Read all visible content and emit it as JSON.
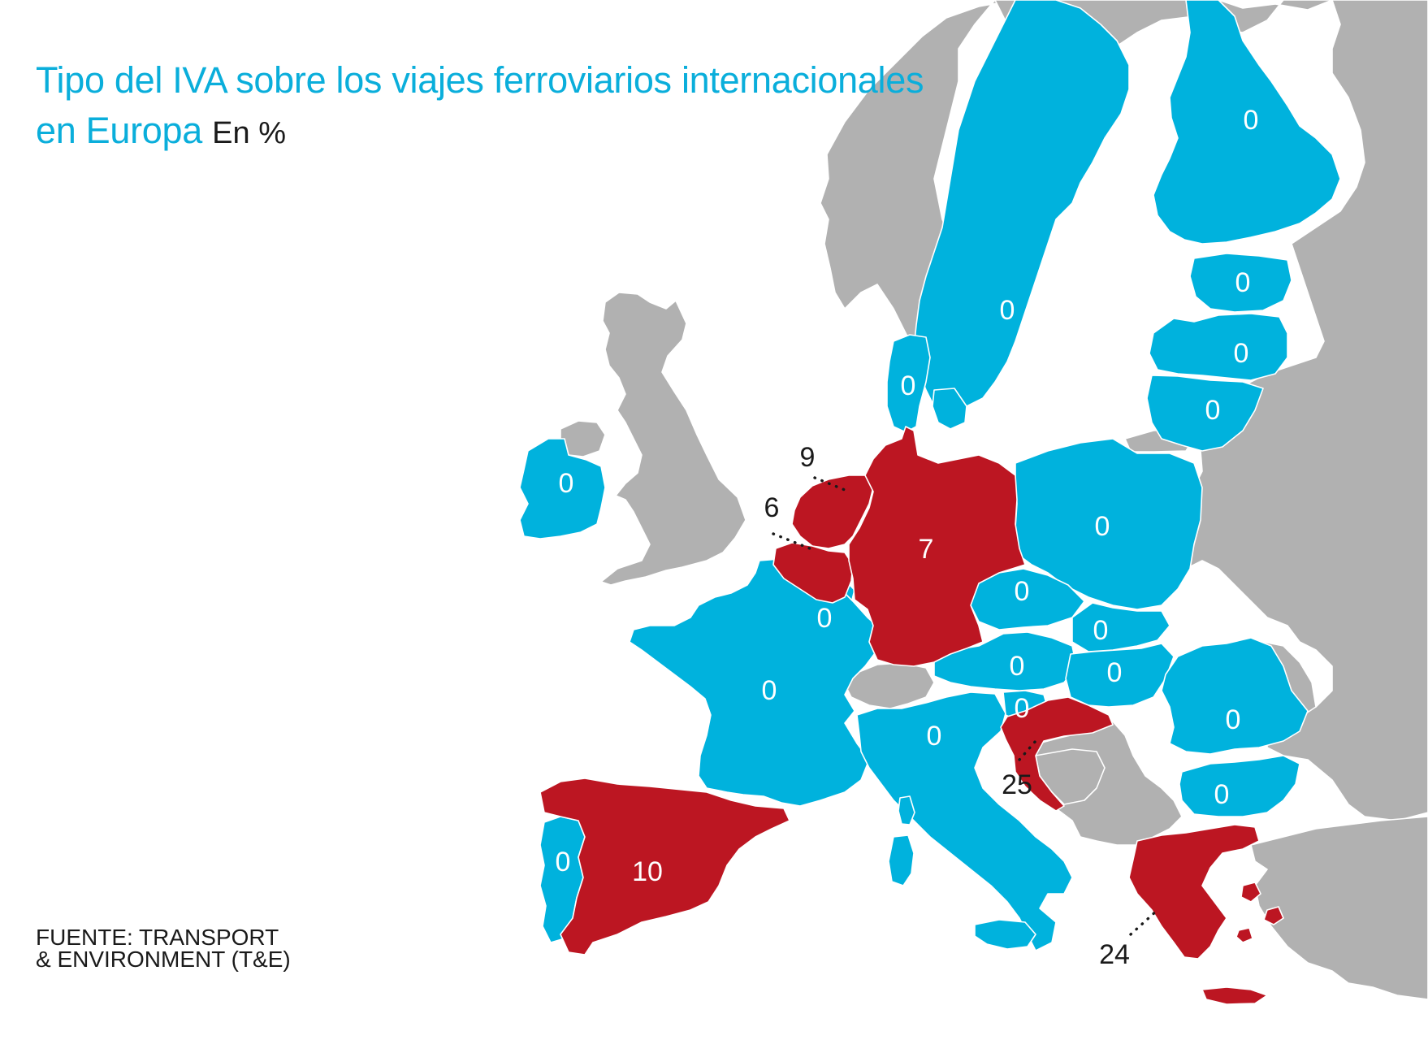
{
  "title": {
    "main": "Tipo del IVA sobre los viajes ferroviarios internacionales en Europa",
    "unit": "En %"
  },
  "source": {
    "line1": "FUENTE: TRANSPORT",
    "line2": "& ENVIRONMENT (T&E)"
  },
  "colors": {
    "zero_rate": "#00b2dd",
    "taxed_rate": "#bc1622",
    "no_data": "#b1b1b1"
  },
  "rates": {
    "finland": "0",
    "estonia": "0",
    "latvia": "0",
    "lithuania": "0",
    "sweden": "0",
    "denmark": "0",
    "ireland": "0",
    "netherlands": "9",
    "belgium": "6",
    "germany": "7",
    "poland": "0",
    "czechia": "0",
    "slovakia": "0",
    "austria": "0",
    "hungary": "0",
    "slovenia": "0",
    "croatia": "25",
    "luxembourg": "0",
    "france": "0",
    "italy": "0",
    "romania": "0",
    "bulgaria": "0",
    "portugal": "0",
    "spain": "10",
    "greece": "24"
  }
}
